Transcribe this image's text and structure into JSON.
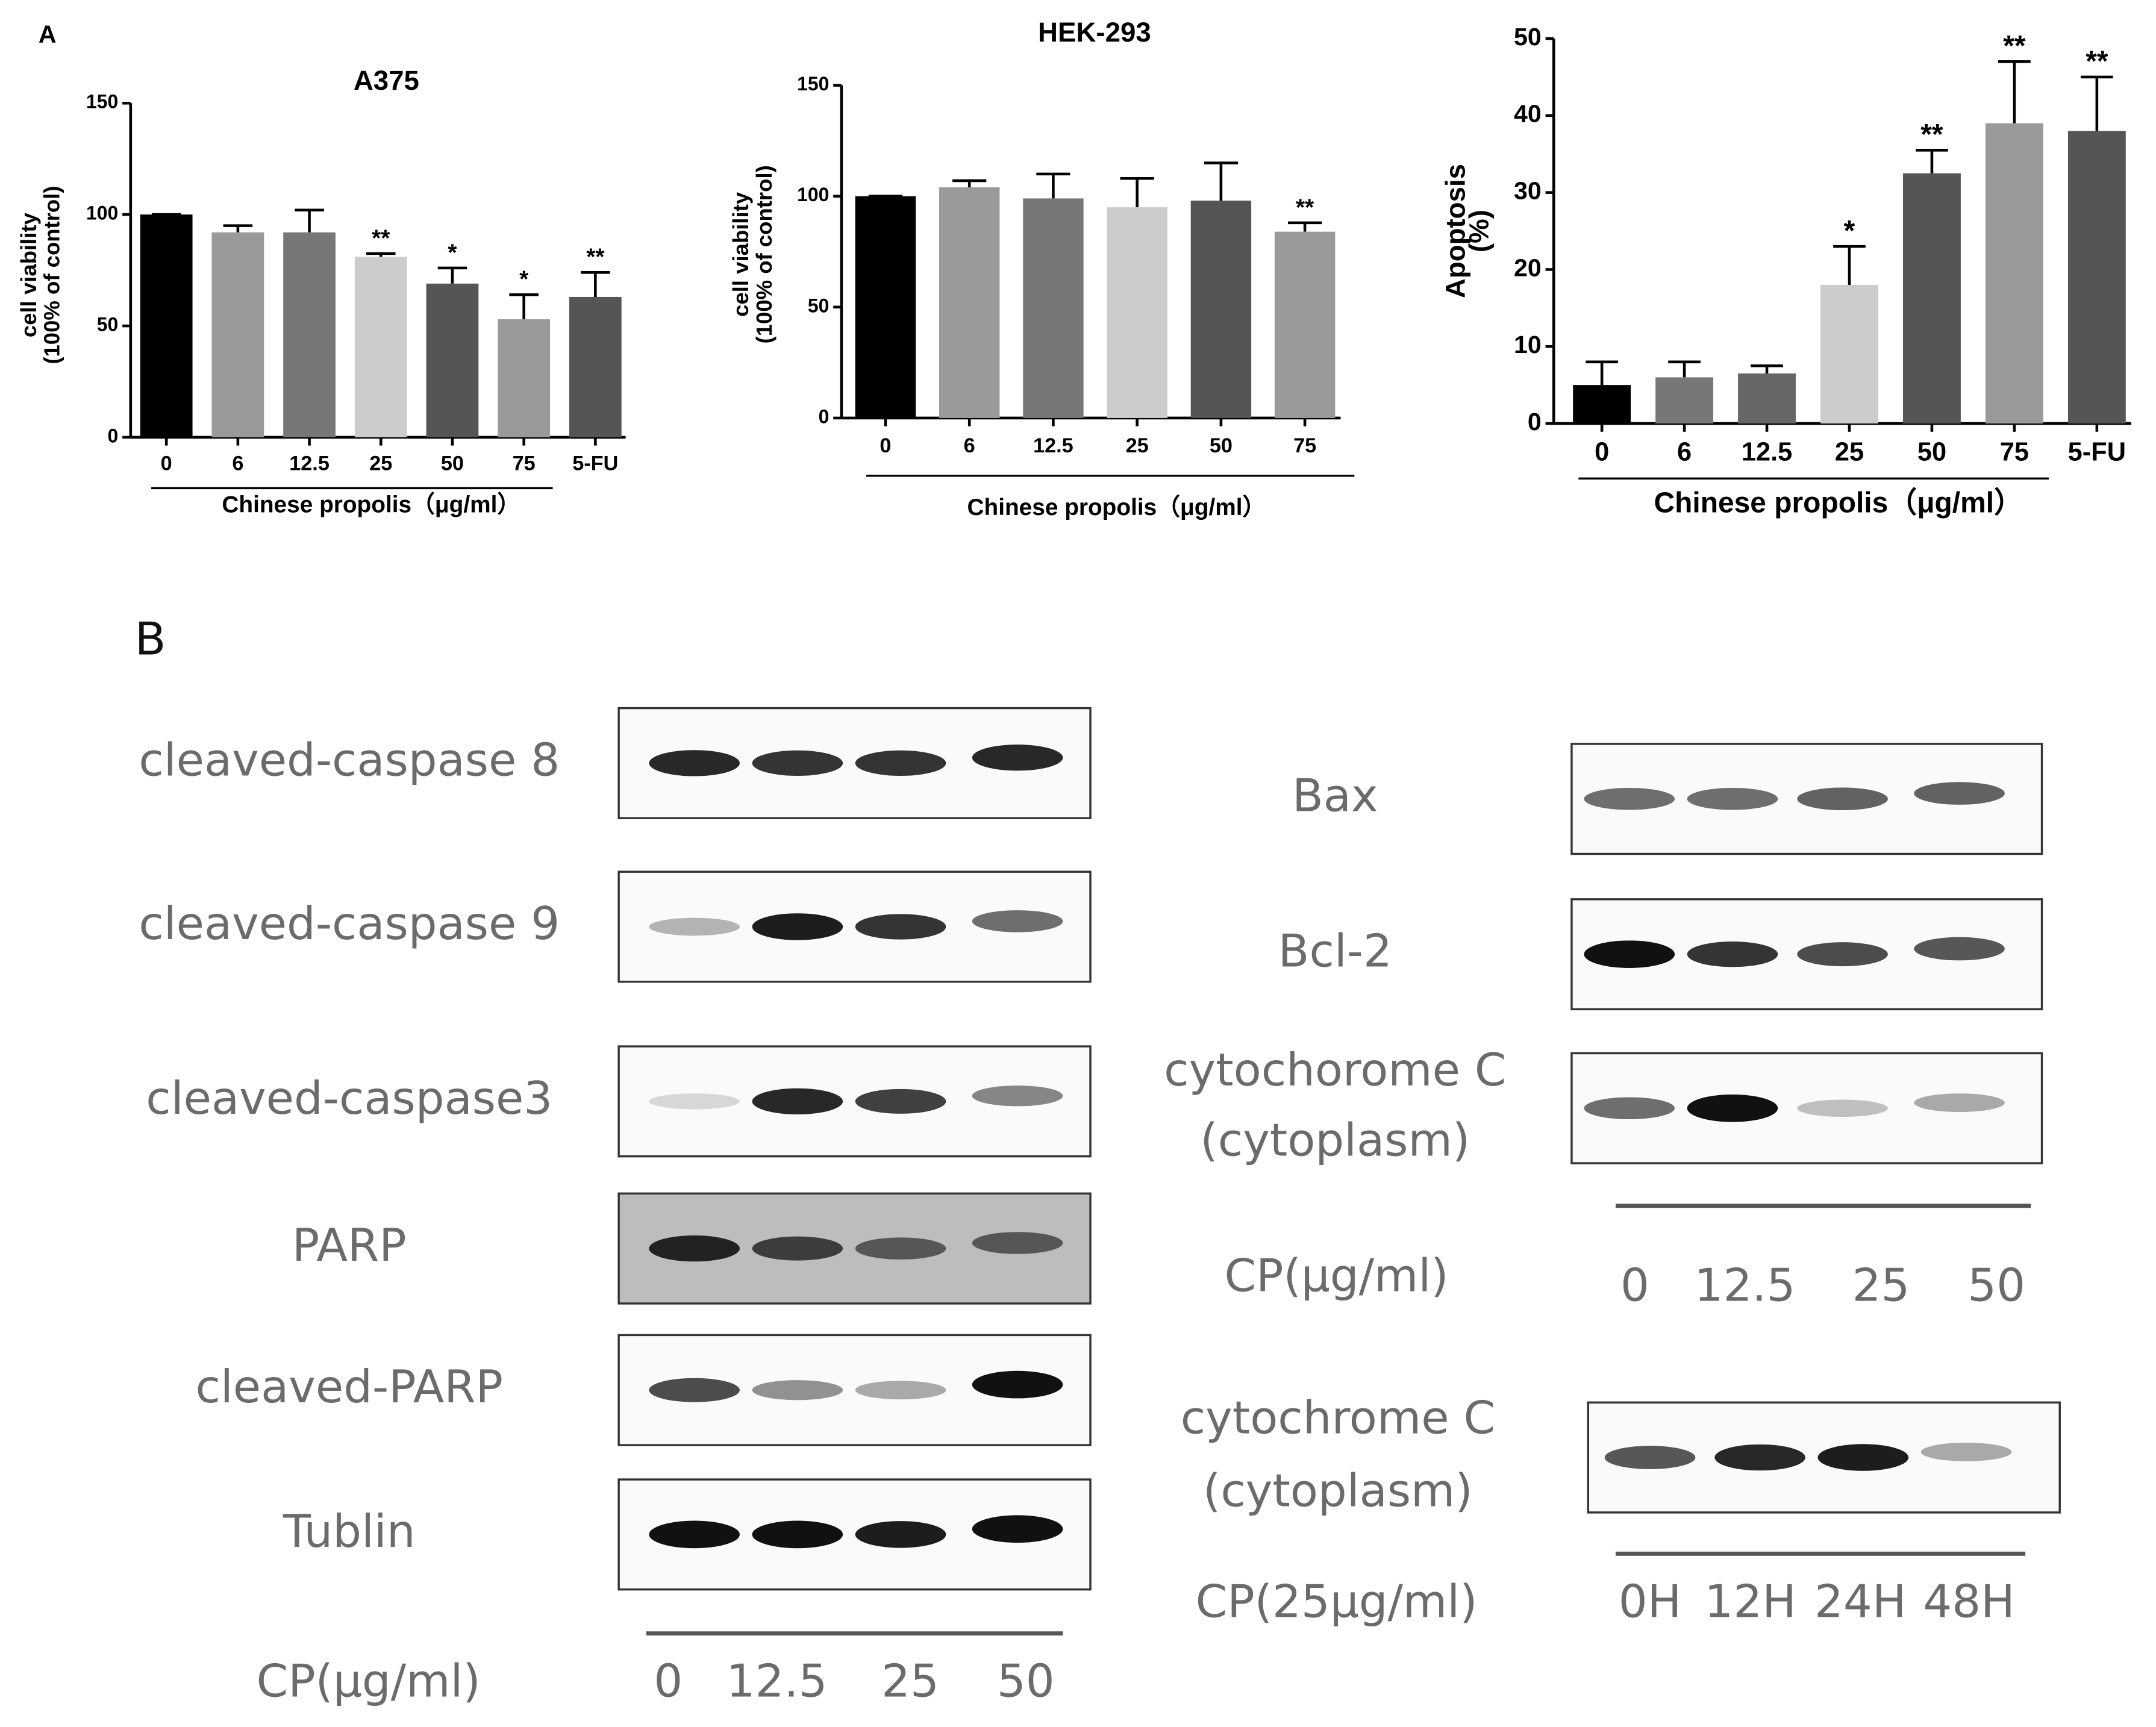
{
  "panel_a": "A",
  "chart_data": [
    {
      "type": "bar",
      "title": "A375",
      "ylabel": [
        "cell viability",
        "(100% of control)"
      ],
      "xlabel": "Chinese propolis（μg/ml）",
      "categories": [
        "0",
        "6",
        "12.5",
        "25",
        "50",
        "75",
        "5-FU"
      ],
      "values": [
        100,
        92,
        92,
        81,
        69,
        53,
        63
      ],
      "errors": [
        0,
        3,
        10,
        1.5,
        7,
        11,
        11
      ],
      "annotations": [
        null,
        null,
        null,
        "**",
        "*",
        "*",
        "**"
      ],
      "colors": [
        "#000000",
        "#9a9a9a",
        "#777777",
        "#cccccc",
        "#555555",
        "#9a9a9a",
        "#555555"
      ],
      "ylim": [
        0,
        150
      ],
      "yticks": [
        0,
        50,
        100,
        150
      ]
    },
    {
      "type": "bar",
      "title": "HEK-293",
      "ylabel": [
        "cell viability",
        "(100% of control)"
      ],
      "xlabel": "Chinese propolis（μg/ml）",
      "categories": [
        "0",
        "6",
        "12.5",
        "25",
        "50",
        "75"
      ],
      "values": [
        100,
        104,
        99,
        95,
        98,
        84
      ],
      "errors": [
        0,
        3,
        11,
        13,
        17,
        4
      ],
      "annotations": [
        null,
        null,
        null,
        null,
        null,
        "**"
      ],
      "colors": [
        "#000000",
        "#9a9a9a",
        "#777777",
        "#cccccc",
        "#555555",
        "#9a9a9a"
      ],
      "ylim": [
        0,
        150
      ],
      "yticks": [
        0,
        50,
        100,
        150
      ]
    },
    {
      "type": "bar",
      "ylabel": [
        "Apoptosis",
        "(%)"
      ],
      "xlabel": "Chinese propolis（μg/ml）",
      "categories": [
        "0",
        "6",
        "12.5",
        "25",
        "50",
        "75",
        "5-FU"
      ],
      "values": [
        5,
        6,
        6.5,
        18,
        32.5,
        39,
        38
      ],
      "errors": [
        3,
        2,
        1,
        5,
        3,
        8,
        7
      ],
      "annotations": [
        null,
        null,
        null,
        "*",
        "**",
        "**",
        "**"
      ],
      "colors": [
        "#000000",
        "#777777",
        "#666666",
        "#cccccc",
        "#555555",
        "#9a9a9a",
        "#555555"
      ],
      "ylim": [
        0,
        50
      ],
      "yticks": [
        0,
        10,
        20,
        30,
        40,
        50
      ]
    }
  ],
  "panel_b": {
    "label": "B",
    "blots": [
      {
        "rows": [
          [
            "cleaved-caspase 8"
          ],
          [
            "cleaved-caspase 9"
          ],
          [
            "cleaved-caspase3"
          ],
          [
            "PARP"
          ],
          [
            "cleaved-PARP"
          ],
          [
            "Tublin"
          ]
        ],
        "xlabel": "CP(μg/ml)",
        "lanes": [
          "0",
          "12.5",
          "25",
          "50"
        ]
      },
      {
        "rows": [
          [
            "Bax"
          ],
          [
            "Bcl-2"
          ],
          [
            "cytochorome C",
            "(cytoplasm)"
          ]
        ],
        "xlabel": "CP(μg/ml)",
        "lanes": [
          "0",
          "12.5",
          "25",
          "50"
        ]
      },
      {
        "rows": [
          [
            "cytochrome C",
            "(cytoplasm)"
          ]
        ],
        "xlabel": "CP(25μg/ml)",
        "lanes": [
          "0H",
          "12H",
          "24H",
          "48H"
        ]
      }
    ]
  }
}
